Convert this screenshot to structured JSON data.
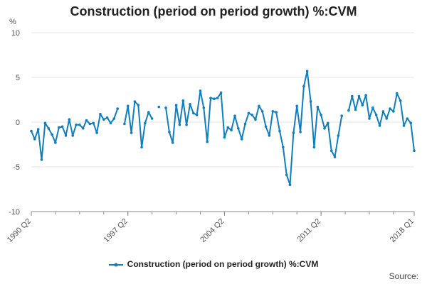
{
  "chart_data": {
    "type": "line",
    "title": "Construction (period on period growth) %:CVM",
    "ylabel": "%",
    "xlabel": "",
    "ylim": [
      -10,
      10
    ],
    "yticks": [
      "10",
      "5",
      "0",
      "-5",
      "-10"
    ],
    "ytick_values": [
      10,
      5,
      0,
      -5,
      -10
    ],
    "xtick_labels": [
      "1990 Q2",
      "1997 Q2",
      "2004 Q2",
      "2011 Q2",
      "2018 Q1"
    ],
    "xtick_indices": [
      0,
      28,
      56,
      84,
      111
    ],
    "grid": true,
    "color": "#0f7ec1",
    "series": [
      {
        "name": "Construction (period on period growth) %:CVM",
        "values": [
          -1.0,
          -1.9,
          -0.8,
          -4.2,
          -0.1,
          -0.7,
          -1.4,
          -2.3,
          -0.6,
          -0.5,
          -1.5,
          0.3,
          -1.5,
          -0.3,
          -0.3,
          -0.7,
          0.2,
          -0.2,
          -0.1,
          -1.2,
          0.9,
          0.3,
          0.5,
          -0.1,
          0.4,
          1.5,
          null,
          -0.2,
          1.8,
          -1.2,
          2.3,
          1.9,
          -2.8,
          -0.1,
          1.1,
          0.4,
          null,
          1.7,
          null,
          1.6,
          -1.1,
          -2.3,
          1.9,
          -0.3,
          2.4,
          -0.3,
          2.0,
          1.0,
          0.8,
          3.5,
          1.6,
          -2.2,
          2.7,
          2.6,
          2.7,
          3.3,
          -1.7,
          -0.6,
          -0.9,
          0.7,
          -0.7,
          -1.9,
          -0.2,
          1.0,
          0.8,
          0.3,
          1.8,
          1.2,
          -0.5,
          -1.5,
          1.2,
          1.1,
          -1.0,
          -2.8,
          -5.9,
          -7.0,
          -1.2,
          1.8,
          -1.1,
          4.0,
          5.7,
          2.3,
          -2.8,
          1.7,
          0.8,
          -0.7,
          -0.1,
          -3.2,
          -3.9,
          -1.5,
          0.7,
          null,
          1.3,
          2.9,
          1.4,
          2.9,
          1.9,
          3.0,
          0.4,
          1.6,
          0.8,
          -0.4,
          1.2,
          0.4,
          1.5,
          1.2,
          3.2,
          2.4,
          -0.4,
          0.4,
          -0.1,
          -3.2
        ]
      }
    ]
  },
  "legend": {
    "label": "Construction (period on period growth) %:CVM"
  },
  "footer": {
    "source_label": "Source:"
  }
}
